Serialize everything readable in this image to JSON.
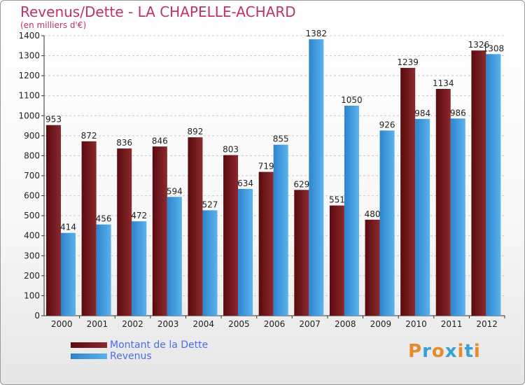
{
  "chart_data": {
    "type": "bar",
    "title": "Revenus/Dette - LA CHAPELLE-ACHARD",
    "subtitle": "(en milliers d'€)",
    "categories": [
      "2000",
      "2001",
      "2002",
      "2003",
      "2004",
      "2005",
      "2006",
      "2007",
      "2008",
      "2009",
      "2010",
      "2011",
      "2012"
    ],
    "series": [
      {
        "name": "Montant de la Dette",
        "color": "#7a1a1e",
        "values": [
          953,
          872,
          836,
          846,
          892,
          803,
          719,
          629,
          551,
          480,
          1239,
          1134,
          1326
        ]
      },
      {
        "name": "Revenus",
        "color": "#3a9ae0",
        "values": [
          414,
          456,
          472,
          594,
          527,
          634,
          855,
          1382,
          1050,
          926,
          984,
          986,
          1308
        ]
      }
    ],
    "ylim": [
      0,
      1400
    ],
    "yticks": [
      0,
      100,
      200,
      300,
      400,
      500,
      600,
      700,
      800,
      900,
      1000,
      1100,
      1200,
      1300,
      1400
    ],
    "grid": true,
    "legend": "bottom-left"
  },
  "logo": {
    "text": "Proxiti",
    "colors": [
      "#e8892a",
      "#3aa0d8",
      "#e8892a",
      "#3aa0d8",
      "#e8892a",
      "#3aa0d8",
      "#e8892a"
    ]
  }
}
